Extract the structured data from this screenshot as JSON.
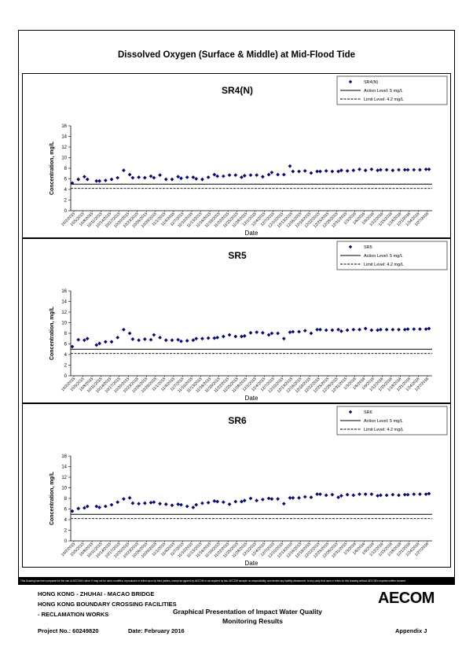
{
  "main_title": "Dissolved Oxygen (Surface & Middle) at Mid-Flood Tide",
  "chart_data": [
    {
      "type": "scatter",
      "title": "SR4(N)",
      "xlabel": "Date",
      "ylabel": "Concentration, mg/L",
      "ylim": [
        0,
        16
      ],
      "yticks": [
        0,
        2,
        4,
        6,
        8,
        10,
        12,
        14,
        16
      ],
      "xtick_labels": [
        "10/2/2015",
        "10/5/2015",
        "10/8/2015",
        "10/11/2015",
        "10/14/2015",
        "10/17/2015",
        "10/20/2015",
        "10/23/2015",
        "10/26/2015",
        "10/29/2015",
        "11/1/2015",
        "11/4/2015",
        "11/7/2015",
        "11/10/2015",
        "11/13/2015",
        "11/16/2015",
        "11/19/2015",
        "11/22/2015",
        "11/25/2015",
        "11/28/2015",
        "12/1/2015",
        "12/4/2015",
        "12/7/2015",
        "12/10/2015",
        "12/13/2015",
        "12/16/2015",
        "12/19/2015",
        "12/22/2015",
        "12/25/2015",
        "12/28/2015",
        "12/31/2015",
        "1/3/2016",
        "1/6/2016",
        "1/9/2016",
        "1/12/2016",
        "1/15/2016",
        "1/18/2016",
        "1/21/2016",
        "1/24/2016",
        "1/27/2016"
      ],
      "legend_placement": "top-right",
      "series": [
        {
          "name": "SR4(N)",
          "marker": "diamond",
          "color": "#0a0a6e",
          "x": [
            0,
            2,
            4,
            5,
            8,
            9,
            11,
            13,
            15,
            17,
            19,
            20,
            22,
            24,
            26,
            27,
            29,
            31,
            33,
            35,
            36,
            38,
            40,
            41,
            43,
            45,
            47,
            48,
            50,
            52,
            54,
            56,
            57,
            59,
            61,
            63,
            65,
            66,
            68,
            70,
            72,
            73,
            75,
            77,
            79,
            81,
            82,
            84,
            86,
            88,
            89,
            91,
            93,
            95,
            97,
            99,
            101,
            102,
            104,
            106,
            108,
            110,
            111,
            113,
            115,
            117,
            118
          ],
          "y": [
            5.2,
            5.9,
            6.4,
            5.9,
            5.6,
            5.6,
            5.7,
            5.9,
            6.2,
            7.6,
            6.8,
            6.2,
            6.3,
            6.2,
            6.5,
            6.2,
            6.7,
            5.9,
            5.9,
            6.4,
            6.1,
            6.3,
            6.3,
            6.0,
            5.9,
            6.3,
            6.8,
            6.5,
            6.5,
            6.7,
            6.7,
            6.3,
            6.6,
            6.7,
            6.7,
            6.4,
            6.8,
            7.2,
            6.8,
            6.8,
            8.4,
            7.4,
            7.4,
            7.5,
            7.1,
            7.4,
            7.4,
            7.5,
            7.4,
            7.4,
            7.6,
            7.5,
            7.6,
            7.8,
            7.6,
            7.8,
            7.6,
            7.7,
            7.7,
            7.6,
            7.7,
            7.7,
            7.7,
            7.7,
            7.7,
            7.8,
            7.8
          ]
        },
        {
          "name": "Action Level: 5 mg/L",
          "type": "line",
          "y": 5,
          "style": "solid"
        },
        {
          "name": "Limit Level: 4.2 mg/L",
          "type": "line",
          "y": 4.2,
          "style": "dashed"
        }
      ]
    },
    {
      "type": "scatter",
      "title": "SR5",
      "xlabel": "Date",
      "ylabel": "Concentration, mg/L",
      "ylim": [
        0,
        16
      ],
      "yticks": [
        0,
        2,
        4,
        6,
        8,
        10,
        12,
        14,
        16
      ],
      "xtick_labels": [
        "10/2/2015",
        "10/5/2015",
        "10/8/2015",
        "10/11/2015",
        "10/14/2015",
        "10/17/2015",
        "10/20/2015",
        "10/23/2015",
        "10/26/2015",
        "10/29/2015",
        "11/1/2015",
        "11/4/2015",
        "11/7/2015",
        "11/10/2015",
        "11/13/2015",
        "11/16/2015",
        "11/19/2015",
        "11/22/2015",
        "11/25/2015",
        "11/28/2015",
        "12/1/2015",
        "12/4/2015",
        "12/7/2015",
        "12/10/2015",
        "12/13/2015",
        "12/16/2015",
        "12/19/2015",
        "12/22/2015",
        "12/25/2015",
        "12/28/2015",
        "12/31/2015",
        "1/3/2016",
        "1/6/2016",
        "1/9/2016",
        "1/12/2016",
        "1/15/2016",
        "1/18/2016",
        "1/21/2016",
        "1/24/2016",
        "1/27/2016"
      ],
      "legend_placement": "top-right",
      "series": [
        {
          "name": "SR5",
          "marker": "diamond",
          "color": "#0a0a6e",
          "x": [
            0,
            2,
            4,
            5,
            8,
            9,
            11,
            13,
            15,
            17,
            19,
            20,
            22,
            24,
            26,
            27,
            29,
            31,
            33,
            35,
            36,
            38,
            40,
            41,
            43,
            45,
            47,
            48,
            50,
            52,
            54,
            56,
            57,
            59,
            61,
            63,
            65,
            66,
            68,
            70,
            72,
            73,
            75,
            77,
            79,
            81,
            82,
            84,
            86,
            88,
            89,
            91,
            93,
            95,
            97,
            99,
            101,
            102,
            104,
            106,
            108,
            110,
            111,
            113,
            115,
            117,
            118
          ],
          "y": [
            5.5,
            6.8,
            6.7,
            7.0,
            5.8,
            6.1,
            6.4,
            6.4,
            7.2,
            8.7,
            8.0,
            6.9,
            6.7,
            6.9,
            6.8,
            7.7,
            7.2,
            6.7,
            6.7,
            6.8,
            6.5,
            6.6,
            6.7,
            7.0,
            7.0,
            7.1,
            7.1,
            7.2,
            7.4,
            7.7,
            7.4,
            7.4,
            7.5,
            8.1,
            8.2,
            8.1,
            7.7,
            8.0,
            8.0,
            7.0,
            8.2,
            8.3,
            8.3,
            8.5,
            8.0,
            8.7,
            8.7,
            8.6,
            8.6,
            8.7,
            8.4,
            8.6,
            8.7,
            8.7,
            8.9,
            8.6,
            8.6,
            8.7,
            8.7,
            8.7,
            8.7,
            8.7,
            8.8,
            8.8,
            8.8,
            8.8,
            8.9
          ]
        },
        {
          "name": "Action Level: 5 mg/L",
          "type": "line",
          "y": 5,
          "style": "solid"
        },
        {
          "name": "Limit Level: 4.2 mg/L",
          "type": "line",
          "y": 4.2,
          "style": "dashed"
        }
      ]
    },
    {
      "type": "scatter",
      "title": "SR6",
      "xlabel": "Date",
      "ylabel": "Concentration, mg/L",
      "ylim": [
        0,
        16
      ],
      "yticks": [
        0,
        2,
        4,
        6,
        8,
        10,
        12,
        14,
        16
      ],
      "xtick_labels": [
        "10/2/2015",
        "10/5/2015",
        "10/8/2015",
        "10/11/2015",
        "10/14/2015",
        "10/17/2015",
        "10/20/2015",
        "10/23/2015",
        "10/26/2015",
        "10/29/2015",
        "11/1/2015",
        "11/4/2015",
        "11/7/2015",
        "11/10/2015",
        "11/13/2015",
        "11/16/2015",
        "11/19/2015",
        "11/22/2015",
        "11/25/2015",
        "11/28/2015",
        "12/1/2015",
        "12/4/2015",
        "12/7/2015",
        "12/10/2015",
        "12/13/2015",
        "12/16/2015",
        "12/19/2015",
        "12/22/2015",
        "12/25/2015",
        "12/28/2015",
        "12/31/2015",
        "1/3/2016",
        "1/6/2016",
        "1/9/2016",
        "1/12/2016",
        "1/15/2016",
        "1/18/2016",
        "1/21/2016",
        "1/24/2016",
        "1/27/2016"
      ],
      "legend_placement": "top-right",
      "series": [
        {
          "name": "SR6",
          "marker": "diamond",
          "color": "#0a0a6e",
          "x": [
            0,
            2,
            4,
            5,
            8,
            9,
            11,
            13,
            15,
            17,
            19,
            20,
            22,
            24,
            26,
            27,
            29,
            31,
            33,
            35,
            36,
            38,
            40,
            41,
            43,
            45,
            47,
            48,
            50,
            52,
            54,
            56,
            57,
            59,
            61,
            63,
            65,
            66,
            68,
            70,
            72,
            73,
            75,
            77,
            79,
            81,
            82,
            84,
            86,
            88,
            89,
            91,
            93,
            95,
            97,
            99,
            101,
            102,
            104,
            106,
            108,
            110,
            111,
            113,
            115,
            117,
            118
          ],
          "y": [
            5.6,
            6.1,
            6.2,
            6.5,
            6.5,
            6.3,
            6.5,
            6.8,
            7.3,
            7.9,
            8.1,
            7.1,
            7.0,
            7.1,
            7.2,
            7.3,
            7.0,
            6.9,
            6.7,
            6.9,
            6.8,
            6.5,
            6.3,
            6.8,
            7.1,
            7.2,
            7.5,
            7.4,
            7.3,
            6.9,
            7.4,
            7.4,
            7.6,
            8.0,
            7.6,
            7.8,
            8.0,
            7.9,
            7.9,
            7.0,
            8.1,
            8.1,
            8.1,
            8.3,
            8.2,
            8.8,
            8.8,
            8.6,
            8.7,
            8.2,
            8.5,
            8.7,
            8.6,
            8.8,
            8.8,
            8.8,
            8.5,
            8.6,
            8.6,
            8.7,
            8.6,
            8.7,
            8.7,
            8.8,
            8.8,
            8.8,
            8.9
          ]
        },
        {
          "name": "Action Level: 5 mg/L",
          "type": "line",
          "y": 5,
          "style": "solid"
        },
        {
          "name": "Limit Level: 4.2 mg/L",
          "type": "line",
          "y": 4.2,
          "style": "dashed"
        }
      ]
    }
  ],
  "disclaimer": "This Drawing has been prepared for the use of AECOM's client. It may not be used, modified, reproduced or relied upon by third parties, except as agreed by AECOM or as required by law. AECOM accepts no responsibility, and denies any liability whatsoever, to any party that uses or relies on this drawing without AECOM's express written consent.",
  "footer": {
    "line1": "HONG KONG - ZHUHAI - MACAO BRIDGE",
    "line2": "HONG KONG BOUNDARY CROSSING FACILITIES",
    "line3": "- RECLAMATION WORKS",
    "center1": "Graphical Presentation of Impact Water Quality",
    "center2": "Monitoring Results",
    "project": "Project No.: 60249820",
    "date": "Date: February 2016",
    "appendix": "Appendix J",
    "logo": "AECOM"
  }
}
